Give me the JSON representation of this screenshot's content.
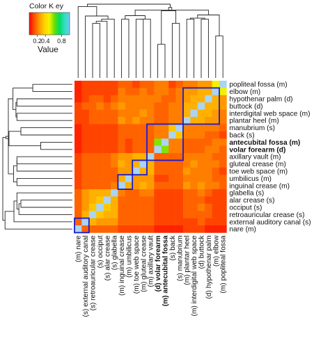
{
  "chart_data": {
    "type": "heatmap",
    "color_key": {
      "title": "Color K ey",
      "ticks": [
        "0.2",
        "0.4",
        "0.8"
      ],
      "tick_values": [
        0.2,
        0.4,
        0.8
      ],
      "label": "Value",
      "range": [
        0.0,
        1.0
      ],
      "colors": [
        "#ff0000",
        "#ff5500",
        "#ff9900",
        "#ffd200",
        "#f2f200",
        "#66e000",
        "#00dd66",
        "#33ddbb",
        "#66ccff"
      ]
    },
    "row_labels": [
      {
        "text": "popliteal fossa (m)",
        "bold": false
      },
      {
        "text": "elbow (m)",
        "bold": false
      },
      {
        "text": "hypothenar palm (d)",
        "bold": false
      },
      {
        "text": "buttock (d)",
        "bold": false
      },
      {
        "text": "interdigital web space (m)",
        "bold": false
      },
      {
        "text": "plantar heel (m)",
        "bold": false
      },
      {
        "text": "manubrium (s)",
        "bold": false
      },
      {
        "text": "back (s)",
        "bold": false
      },
      {
        "text": "antecubital fossa (m)",
        "bold": true
      },
      {
        "text": "volar forearm (d)",
        "bold": true
      },
      {
        "text": "axillary vault (m)",
        "bold": false
      },
      {
        "text": "gluteal crease (m)",
        "bold": false
      },
      {
        "text": "toe web space (m)",
        "bold": false
      },
      {
        "text": "umbilicus (m)",
        "bold": false
      },
      {
        "text": "inguinal crease (m)",
        "bold": false
      },
      {
        "text": "glabella (s)",
        "bold": false
      },
      {
        "text": "alar crease (s)",
        "bold": false
      },
      {
        "text": "occiput (s)",
        "bold": false
      },
      {
        "text": "retroauricular crease (s)",
        "bold": false
      },
      {
        "text": "external auditory canal (s)",
        "bold": false
      },
      {
        "text": "nare (m)",
        "bold": false
      }
    ],
    "col_labels": [
      {
        "text": "(m) nare",
        "bold": false
      },
      {
        "text": "(s) external auditory canal",
        "bold": false
      },
      {
        "text": "(s) retroauricular crease",
        "bold": false
      },
      {
        "text": "(s) occiput",
        "bold": false
      },
      {
        "text": "(s) alar crease",
        "bold": false
      },
      {
        "text": "(s) glabella",
        "bold": false
      },
      {
        "text": "(m) inguinal crease",
        "bold": false
      },
      {
        "text": "(m) umbilicus",
        "bold": false
      },
      {
        "text": "(m) toe web space",
        "bold": false
      },
      {
        "text": "(m) gluteal crease",
        "bold": false
      },
      {
        "text": "(m) axillary vault",
        "bold": false
      },
      {
        "text": "(d) volar forearm",
        "bold": true
      },
      {
        "text": "(m) antecubital fossa",
        "bold": true
      },
      {
        "text": "(s) back",
        "bold": false
      },
      {
        "text": "(s) manubrium",
        "bold": false
      },
      {
        "text": "(m) plantar heel",
        "bold": false
      },
      {
        "text": "(m) interdigital web space",
        "bold": false
      },
      {
        "text": "(d) buttock",
        "bold": false
      },
      {
        "text": "(d) hypothenar palm",
        "bold": false
      },
      {
        "text": "(m) elbow",
        "bold": false
      },
      {
        "text": "(m) popliteal fossa",
        "bold": false
      }
    ],
    "values": [
      [
        0.05,
        0.1,
        0.1,
        0.1,
        0.1,
        0.1,
        0.15,
        0.15,
        0.1,
        0.15,
        0.15,
        0.2,
        0.2,
        0.1,
        0.15,
        0.2,
        0.2,
        0.25,
        0.25,
        0.5,
        1.0
      ],
      [
        0.05,
        0.1,
        0.1,
        0.1,
        0.1,
        0.1,
        0.2,
        0.15,
        0.15,
        0.2,
        0.15,
        0.2,
        0.2,
        0.15,
        0.2,
        0.25,
        0.25,
        0.3,
        0.3,
        1.0,
        0.5
      ],
      [
        0.05,
        0.1,
        0.15,
        0.15,
        0.1,
        0.15,
        0.2,
        0.2,
        0.2,
        0.2,
        0.2,
        0.2,
        0.15,
        0.15,
        0.2,
        0.25,
        0.3,
        0.3,
        1.0,
        0.3,
        0.25
      ],
      [
        0.1,
        0.15,
        0.15,
        0.2,
        0.15,
        0.2,
        0.25,
        0.2,
        0.2,
        0.2,
        0.2,
        0.15,
        0.15,
        0.2,
        0.2,
        0.3,
        0.3,
        1.0,
        0.3,
        0.3,
        0.25
      ],
      [
        0.1,
        0.1,
        0.15,
        0.15,
        0.15,
        0.15,
        0.2,
        0.2,
        0.2,
        0.25,
        0.2,
        0.15,
        0.15,
        0.2,
        0.2,
        0.3,
        1.0,
        0.3,
        0.3,
        0.25,
        0.2
      ],
      [
        0.1,
        0.1,
        0.15,
        0.15,
        0.15,
        0.15,
        0.25,
        0.2,
        0.25,
        0.2,
        0.2,
        0.15,
        0.15,
        0.2,
        0.2,
        1.0,
        0.3,
        0.3,
        0.25,
        0.25,
        0.2
      ],
      [
        0.05,
        0.1,
        0.1,
        0.1,
        0.1,
        0.1,
        0.15,
        0.15,
        0.15,
        0.15,
        0.15,
        0.2,
        0.2,
        0.35,
        1.0,
        0.2,
        0.2,
        0.2,
        0.2,
        0.2,
        0.15
      ],
      [
        0.05,
        0.1,
        0.1,
        0.1,
        0.1,
        0.1,
        0.15,
        0.15,
        0.15,
        0.15,
        0.15,
        0.2,
        0.2,
        1.0,
        0.35,
        0.2,
        0.2,
        0.2,
        0.15,
        0.15,
        0.1
      ],
      [
        0.05,
        0.1,
        0.1,
        0.1,
        0.1,
        0.1,
        0.15,
        0.1,
        0.15,
        0.15,
        0.15,
        0.6,
        1.0,
        0.2,
        0.2,
        0.15,
        0.15,
        0.15,
        0.15,
        0.2,
        0.2
      ],
      [
        0.05,
        0.1,
        0.1,
        0.1,
        0.1,
        0.1,
        0.15,
        0.1,
        0.15,
        0.15,
        0.15,
        1.0,
        0.6,
        0.2,
        0.2,
        0.15,
        0.15,
        0.15,
        0.2,
        0.2,
        0.15
      ],
      [
        0.1,
        0.15,
        0.15,
        0.15,
        0.15,
        0.2,
        0.25,
        0.25,
        0.3,
        0.3,
        1.0,
        0.15,
        0.15,
        0.15,
        0.15,
        0.2,
        0.2,
        0.2,
        0.2,
        0.15,
        0.15
      ],
      [
        0.1,
        0.15,
        0.15,
        0.15,
        0.15,
        0.2,
        0.3,
        0.25,
        0.3,
        1.0,
        0.3,
        0.15,
        0.15,
        0.15,
        0.15,
        0.2,
        0.25,
        0.2,
        0.2,
        0.2,
        0.15
      ],
      [
        0.1,
        0.15,
        0.15,
        0.15,
        0.15,
        0.15,
        0.25,
        0.25,
        1.0,
        0.3,
        0.3,
        0.15,
        0.15,
        0.15,
        0.15,
        0.25,
        0.2,
        0.2,
        0.2,
        0.15,
        0.1
      ],
      [
        0.1,
        0.15,
        0.15,
        0.15,
        0.15,
        0.15,
        0.3,
        1.0,
        0.25,
        0.25,
        0.25,
        0.1,
        0.1,
        0.15,
        0.15,
        0.2,
        0.2,
        0.2,
        0.2,
        0.15,
        0.15
      ],
      [
        0.1,
        0.15,
        0.15,
        0.15,
        0.15,
        0.2,
        1.0,
        0.3,
        0.25,
        0.3,
        0.25,
        0.15,
        0.15,
        0.15,
        0.15,
        0.25,
        0.2,
        0.25,
        0.2,
        0.2,
        0.15
      ],
      [
        0.15,
        0.25,
        0.3,
        0.3,
        0.3,
        1.0,
        0.2,
        0.15,
        0.15,
        0.2,
        0.2,
        0.1,
        0.1,
        0.1,
        0.1,
        0.15,
        0.15,
        0.2,
        0.15,
        0.1,
        0.1
      ],
      [
        0.15,
        0.25,
        0.3,
        0.35,
        1.0,
        0.3,
        0.15,
        0.15,
        0.15,
        0.15,
        0.15,
        0.1,
        0.1,
        0.1,
        0.1,
        0.15,
        0.15,
        0.15,
        0.1,
        0.1,
        0.1
      ],
      [
        0.15,
        0.25,
        0.35,
        1.0,
        0.35,
        0.3,
        0.15,
        0.15,
        0.15,
        0.15,
        0.15,
        0.1,
        0.1,
        0.1,
        0.1,
        0.15,
        0.15,
        0.2,
        0.15,
        0.1,
        0.1
      ],
      [
        0.15,
        0.3,
        1.0,
        0.35,
        0.3,
        0.3,
        0.15,
        0.15,
        0.15,
        0.15,
        0.15,
        0.1,
        0.1,
        0.1,
        0.1,
        0.15,
        0.15,
        0.15,
        0.15,
        0.1,
        0.1
      ],
      [
        0.15,
        1.0,
        0.3,
        0.25,
        0.25,
        0.25,
        0.15,
        0.15,
        0.15,
        0.15,
        0.15,
        0.1,
        0.1,
        0.1,
        0.1,
        0.1,
        0.1,
        0.15,
        0.1,
        0.1,
        0.1
      ],
      [
        1.0,
        0.15,
        0.15,
        0.15,
        0.15,
        0.15,
        0.1,
        0.1,
        0.1,
        0.1,
        0.1,
        0.05,
        0.05,
        0.05,
        0.05,
        0.1,
        0.1,
        0.1,
        0.05,
        0.05,
        0.05
      ]
    ],
    "diagonal_color": "#aad4f0",
    "cluster_boxes": [
      {
        "from": 0,
        "to": 1,
        "color": "#1a1acc"
      },
      {
        "from": 6,
        "to": 7,
        "color": "#1a1acc"
      },
      {
        "from": 8,
        "to": 9,
        "color": "#1a1acc"
      },
      {
        "from": 10,
        "to": 14,
        "color": "#1a1acc"
      },
      {
        "from": 15,
        "to": 19,
        "color": "#1a1acc"
      }
    ],
    "column_dendrogram": true,
    "row_dendrogram": true
  }
}
